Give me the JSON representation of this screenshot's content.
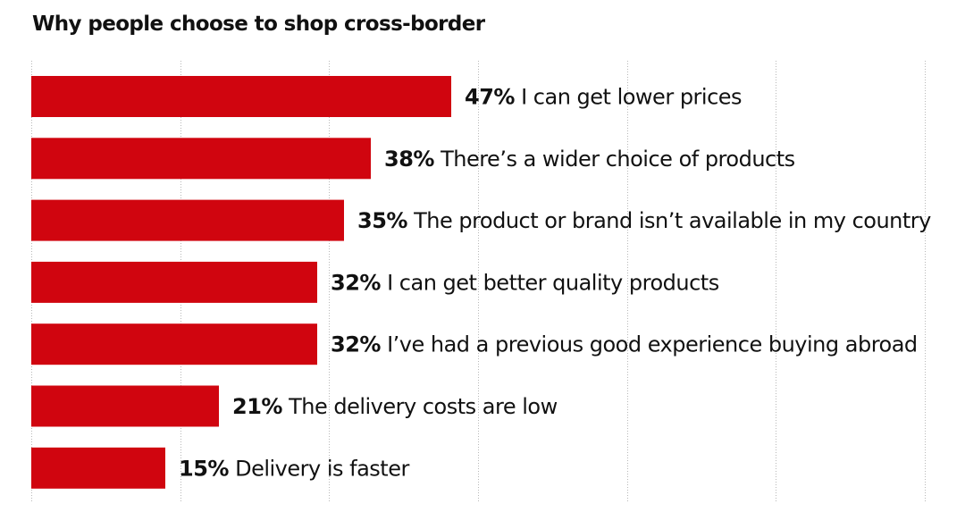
{
  "chart_data": {
    "type": "bar",
    "orientation": "horizontal",
    "title": "Why people choose to shop cross-border",
    "xlabel": "",
    "ylabel": "",
    "xlim": [
      0,
      60
    ],
    "grid": true,
    "bar_color": "#d0050f",
    "grid_color": "#b8b8b8",
    "categories": [
      "I can get lower prices",
      "There’s a wider choice of products",
      "The product or brand isn’t available in my country",
      "I can get better quality products",
      "I’ve had a previous good experience buying abroad",
      "The delivery costs are low",
      "Delivery is faster"
    ],
    "values": [
      47,
      38,
      35,
      32,
      32,
      21,
      15
    ],
    "value_labels": [
      "47%",
      "38%",
      "35%",
      "32%",
      "32%",
      "21%",
      "15%"
    ]
  }
}
